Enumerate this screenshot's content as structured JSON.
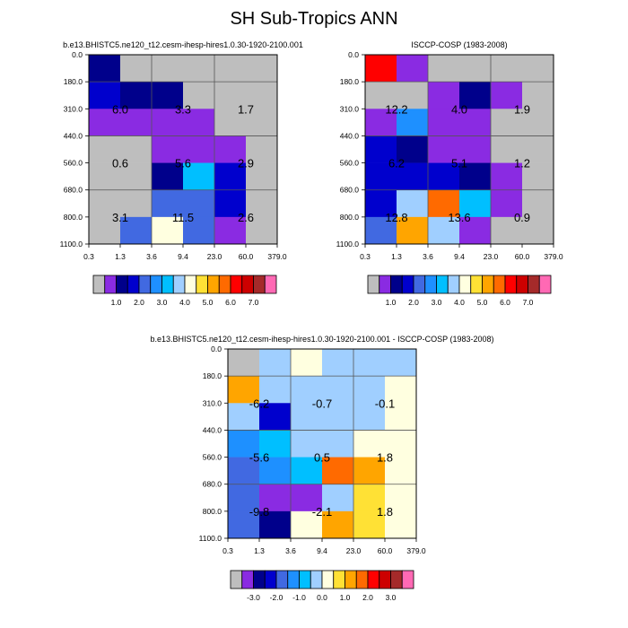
{
  "title": "SH Sub-Tropics ANN",
  "palettes": {
    "abs": [
      "#bebebe",
      "#8a2be2",
      "#00008b",
      "#0000cd",
      "#4169e1",
      "#1e90ff",
      "#00bfff",
      "#a0cfff",
      "#ffffe0",
      "#ffe135",
      "#ffa500",
      "#ff6a00",
      "#ff0000",
      "#cd0000",
      "#a52a2a",
      "#ff69b4"
    ],
    "diff": [
      "#bebebe",
      "#8a2be2",
      "#00008b",
      "#0000cd",
      "#4169e1",
      "#1e90ff",
      "#00bfff",
      "#a0cfff",
      "#ffffe0",
      "#ffe135",
      "#ffa500",
      "#ff6a00",
      "#ff0000",
      "#cd0000",
      "#a52a2a",
      "#ff69b4"
    ]
  },
  "chart_data": [
    {
      "id": "model",
      "type": "heatmap",
      "title": "b.e13.BHISTC5.ne120_t12.cesm-ihesp-hires1.0.30-1920-2100.001",
      "x_ticks": [
        "0.3",
        "1.3",
        "3.6",
        "9.4",
        "23.0",
        "60.0",
        "379.0"
      ],
      "y_ticks": [
        "0.0",
        "180.0",
        "310.0",
        "440.0",
        "560.0",
        "680.0",
        "800.0",
        "1100.0"
      ],
      "cells": [
        [
          2,
          0,
          0,
          0,
          0,
          0
        ],
        [
          3,
          2,
          2,
          0,
          0,
          0
        ],
        [
          1,
          1,
          1,
          1,
          0,
          0
        ],
        [
          0,
          0,
          1,
          1,
          1,
          0
        ],
        [
          0,
          0,
          2,
          6,
          3,
          0
        ],
        [
          0,
          0,
          4,
          4,
          3,
          0
        ],
        [
          0,
          4,
          8,
          4,
          1,
          0
        ]
      ],
      "group_labels": [
        [
          "6.0",
          "3.3",
          "1.7"
        ],
        [
          "0.6",
          "5.6",
          "2.9"
        ],
        [
          "3.1",
          "11.5",
          "2.6"
        ]
      ],
      "colorbar_labels": [
        "1.0",
        "2.0",
        "3.0",
        "4.0",
        "5.0",
        "6.0",
        "7.0"
      ]
    },
    {
      "id": "obs",
      "type": "heatmap",
      "title": "ISCCP-COSP (1983-2008)",
      "x_ticks": [
        "0.3",
        "1.3",
        "3.6",
        "9.4",
        "23.0",
        "60.0",
        "379.0"
      ],
      "y_ticks": [
        "0.0",
        "180.0",
        "310.0",
        "440.0",
        "560.0",
        "680.0",
        "800.0",
        "1100.0"
      ],
      "cells": [
        [
          12,
          1,
          0,
          0,
          0,
          0
        ],
        [
          0,
          0,
          1,
          2,
          1,
          0
        ],
        [
          1,
          5,
          1,
          1,
          0,
          0
        ],
        [
          3,
          2,
          1,
          1,
          0,
          0
        ],
        [
          3,
          3,
          3,
          2,
          1,
          0
        ],
        [
          3,
          7,
          11,
          6,
          1,
          0
        ],
        [
          4,
          10,
          7,
          1,
          0,
          0
        ]
      ],
      "group_labels": [
        [
          "12.2",
          "4.0",
          "1.9"
        ],
        [
          "6.2",
          "5.1",
          "1.2"
        ],
        [
          "12.8",
          "13.6",
          "0.9"
        ]
      ],
      "colorbar_labels": [
        "1.0",
        "2.0",
        "3.0",
        "4.0",
        "5.0",
        "6.0",
        "7.0"
      ]
    },
    {
      "id": "diff",
      "type": "heatmap",
      "title": "b.e13.BHISTC5.ne120_t12.cesm-ihesp-hires1.0.30-1920-2100.001 - ISCCP-COSP (1983-2008)",
      "x_ticks": [
        "0.3",
        "1.3",
        "3.6",
        "9.4",
        "23.0",
        "60.0",
        "379.0"
      ],
      "y_ticks": [
        "0.0",
        "180.0",
        "310.0",
        "440.0",
        "560.0",
        "680.0",
        "800.0",
        "1100.0"
      ],
      "cells": [
        [
          0,
          7,
          8,
          7,
          7,
          7
        ],
        [
          10,
          7,
          7,
          7,
          7,
          8
        ],
        [
          7,
          3,
          7,
          7,
          7,
          8
        ],
        [
          5,
          6,
          7,
          7,
          8,
          8
        ],
        [
          4,
          5,
          6,
          11,
          10,
          8
        ],
        [
          4,
          1,
          1,
          7,
          9,
          8
        ],
        [
          4,
          2,
          8,
          10,
          9,
          8
        ]
      ],
      "group_labels": [
        [
          "-6.2",
          "-0.7",
          "-0.1"
        ],
        [
          "-5.6",
          "0.5",
          "1.8"
        ],
        [
          "-9.8",
          "-2.1",
          "1.8"
        ]
      ],
      "colorbar_labels": [
        "-3.0",
        "-2.0",
        "-1.0",
        "0.0",
        "1.0",
        "2.0",
        "3.0"
      ]
    }
  ]
}
